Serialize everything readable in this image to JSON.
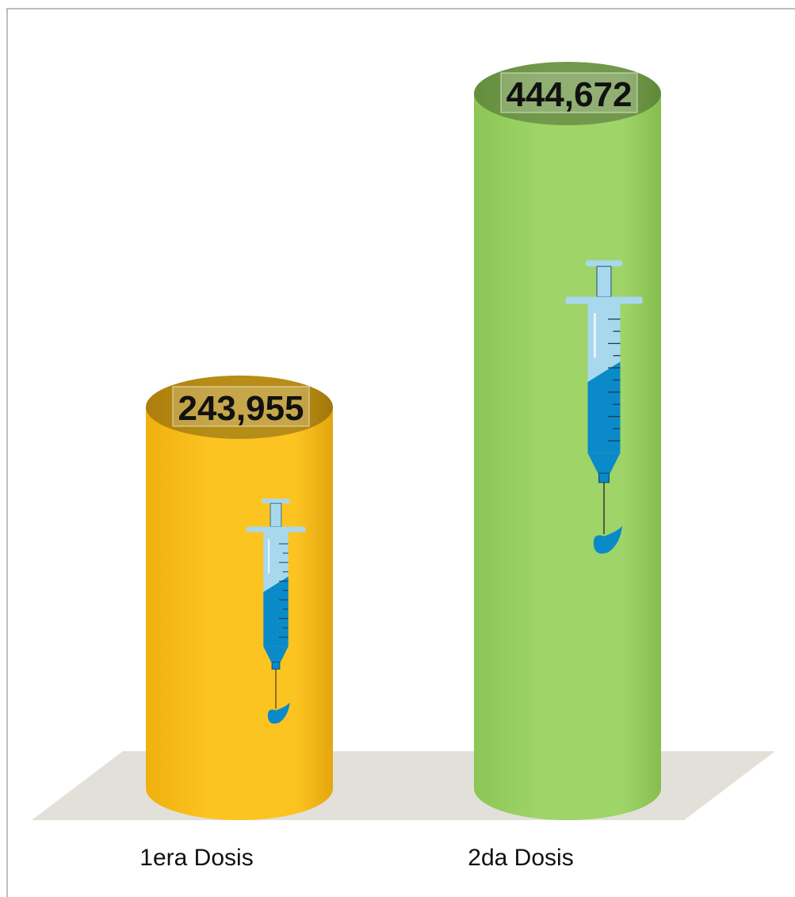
{
  "chart_data": {
    "type": "bar",
    "categories": [
      "1era Dosis",
      "2da Dosis"
    ],
    "values": [
      243955,
      444672
    ],
    "value_labels": [
      "243,955",
      "444,672"
    ],
    "title": "",
    "xlabel": "",
    "ylabel": "",
    "ylim": [
      0,
      444672
    ],
    "grid": false,
    "legend": "none",
    "bar_style": "3d-cylinder",
    "bar_icon": "syringe-icon",
    "colors": {
      "1era Dosis": "#FCC421",
      "2da Dosis": "#9ED468",
      "floor": "#E3E0DA",
      "frame": "#A8A8A8",
      "syringe_light": "#A8D8EE",
      "syringe_dark": "#0A8AC8"
    }
  }
}
